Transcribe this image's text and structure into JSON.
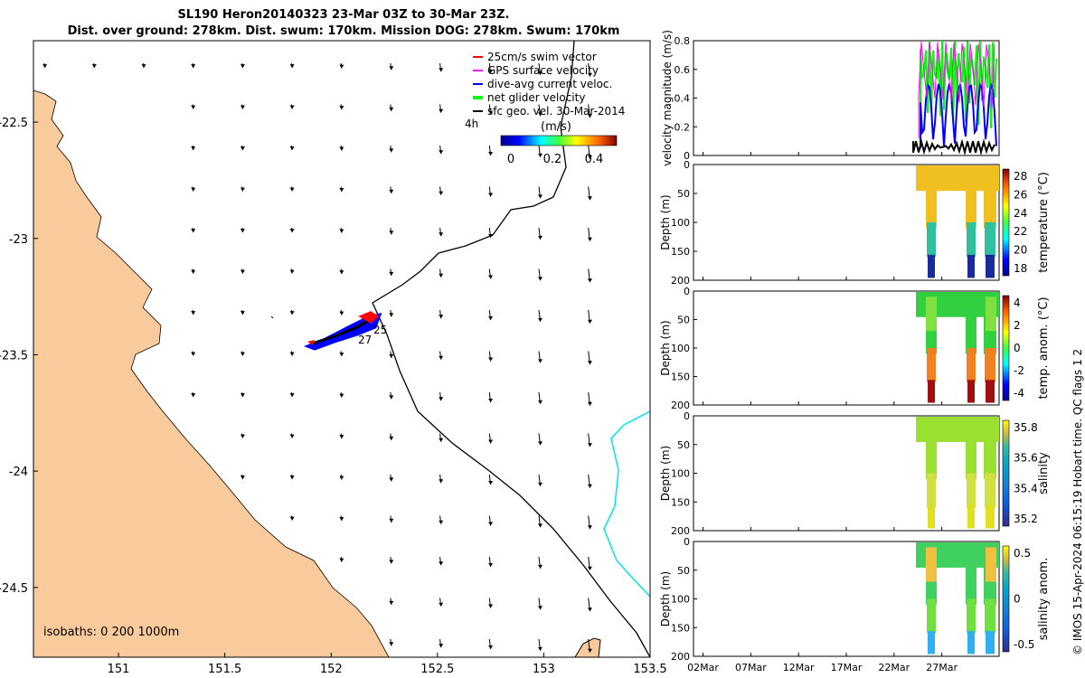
{
  "title_line1": "SL190 Heron20140323 23-Mar 03Z to 30-Mar 23Z.",
  "title_line2": "Dist. over ground: 278km. Dist. swum: 170km. Mission DOG: 278km. Swum: 170km",
  "credit": "© IMOS 15-Apr-2024 06:15:19 Hobart time. QC flags 1  2",
  "colors": {
    "land": "#f9cb9c",
    "swim": "#ff0000",
    "gps": "#ff00ff",
    "current": "#0000ff",
    "net": "#00ff00",
    "sfc": "#000000",
    "isobath_200": "#000000",
    "isobath_1000": "#00e5ee"
  },
  "map": {
    "xlim": [
      150.6,
      153.5
    ],
    "ylim": [
      -24.8,
      -22.15
    ],
    "xticks": [
      "151",
      "151.5",
      "152",
      "152.5",
      "153",
      "153.5"
    ],
    "yticks": [
      "-22.5",
      "-23",
      "-23.5",
      "-24",
      "-24.5"
    ],
    "legend": [
      {
        "label": "25cm/s swim vector",
        "color_key": "swim"
      },
      {
        "label": "GPS surface velocity",
        "color_key": "gps"
      },
      {
        "label": "dive-avg current veloc.",
        "color_key": "current"
      },
      {
        "label": "net glider velocity",
        "color_key": "net"
      },
      {
        "label": "sfc geo. vel. 30-Mar-2014",
        "color_key": "sfc"
      }
    ],
    "legend_extra": "4h",
    "colorbar_label": "(m/s)",
    "colorbar_ticks": [
      "0",
      "0.2",
      "0.4"
    ],
    "isobath_label": "isobaths: 0   200  1000m",
    "track_labels": [
      "25",
      "27"
    ]
  },
  "panels": [
    {
      "id": "velocity",
      "ylabel": "velocity magnitude (m/s)",
      "yticks": [
        "0",
        "0.2",
        "0.4",
        "0.6",
        "0.8"
      ],
      "cbar_label": "",
      "cbar_ticks": []
    },
    {
      "id": "temperature",
      "ylabel": "Depth (m)",
      "yticks": [
        "0",
        "50",
        "100",
        "150",
        "200"
      ],
      "cbar_label": "temperature (°C)",
      "cbar_ticks": [
        "18",
        "20",
        "22",
        "24",
        "26",
        "28"
      ]
    },
    {
      "id": "temp_anom",
      "ylabel": "Depth (m)",
      "yticks": [
        "0",
        "50",
        "100",
        "150",
        "200"
      ],
      "cbar_label": "temp. anom. (°C)",
      "cbar_ticks": [
        "-4",
        "-2",
        "0",
        "2",
        "4"
      ]
    },
    {
      "id": "salinity",
      "ylabel": "Depth (m)",
      "yticks": [
        "0",
        "50",
        "100",
        "150",
        "200"
      ],
      "cbar_label": "salinity",
      "cbar_ticks": [
        "35.2",
        "35.4",
        "35.6",
        "35.8"
      ]
    },
    {
      "id": "sal_anom",
      "ylabel": "Depth (m)",
      "yticks": [
        "0",
        "50",
        "100",
        "150",
        "200"
      ],
      "cbar_label": "salinity anom.",
      "cbar_ticks": [
        "-0.5",
        "0",
        "0.5"
      ]
    }
  ],
  "time_ticks": [
    "02Mar",
    "07Mar",
    "12Mar",
    "17Mar",
    "22Mar",
    "27Mar"
  ],
  "chart_data": [
    {
      "type": "scatter",
      "title": "SL190 Heron20140323 23-Mar 03Z to 30-Mar 23Z.",
      "xlim": [
        150.6,
        153.5
      ],
      "ylim": [
        -24.8,
        -22.15
      ],
      "series": [
        {
          "name": "dive-avg current veloc.",
          "x": [
            151.9,
            152.0,
            152.1,
            152.2,
            152.1,
            152.0
          ],
          "y": [
            -23.42,
            -23.38,
            -23.32,
            -23.27,
            -23.3,
            -23.35
          ]
        },
        {
          "name": "25cm/s swim vector",
          "x": [
            151.95,
            152.05,
            152.15,
            152.2
          ],
          "y": [
            -23.4,
            -23.36,
            -23.3,
            -23.27
          ]
        }
      ]
    },
    {
      "type": "line",
      "ylabel": "velocity magnitude (m/s)",
      "ylim": [
        0,
        0.8
      ],
      "x_range_days": [
        "23Mar",
        "30Mar"
      ],
      "series": [
        {
          "name": "net glider velocity",
          "values": [
            0.7,
            0.6,
            0.8,
            0.75,
            0.5,
            0.8,
            0.65
          ]
        },
        {
          "name": "dive-avg current veloc.",
          "values": [
            0.4,
            0.3,
            0.5,
            0.45,
            0.3,
            0.5,
            0.4
          ]
        },
        {
          "name": "sfc geo. vel. 30-Mar-2014",
          "values": [
            0.1,
            0.08,
            0.1,
            0.09,
            0.07,
            0.08,
            0.1
          ]
        }
      ]
    },
    {
      "type": "heatmap",
      "ylabel": "Depth (m)",
      "zlabel": "temperature (°C)",
      "zlim": [
        17,
        29.5
      ]
    },
    {
      "type": "heatmap",
      "ylabel": "Depth (m)",
      "zlabel": "temp. anom. (°C)",
      "zlim": [
        -4,
        4
      ]
    },
    {
      "type": "heatmap",
      "ylabel": "Depth (m)",
      "zlabel": "salinity",
      "zlim": [
        35.1,
        35.9
      ]
    },
    {
      "type": "heatmap",
      "ylabel": "Depth (m)",
      "zlabel": "salinity anom.",
      "zlim": [
        -0.5,
        0.5
      ]
    }
  ]
}
